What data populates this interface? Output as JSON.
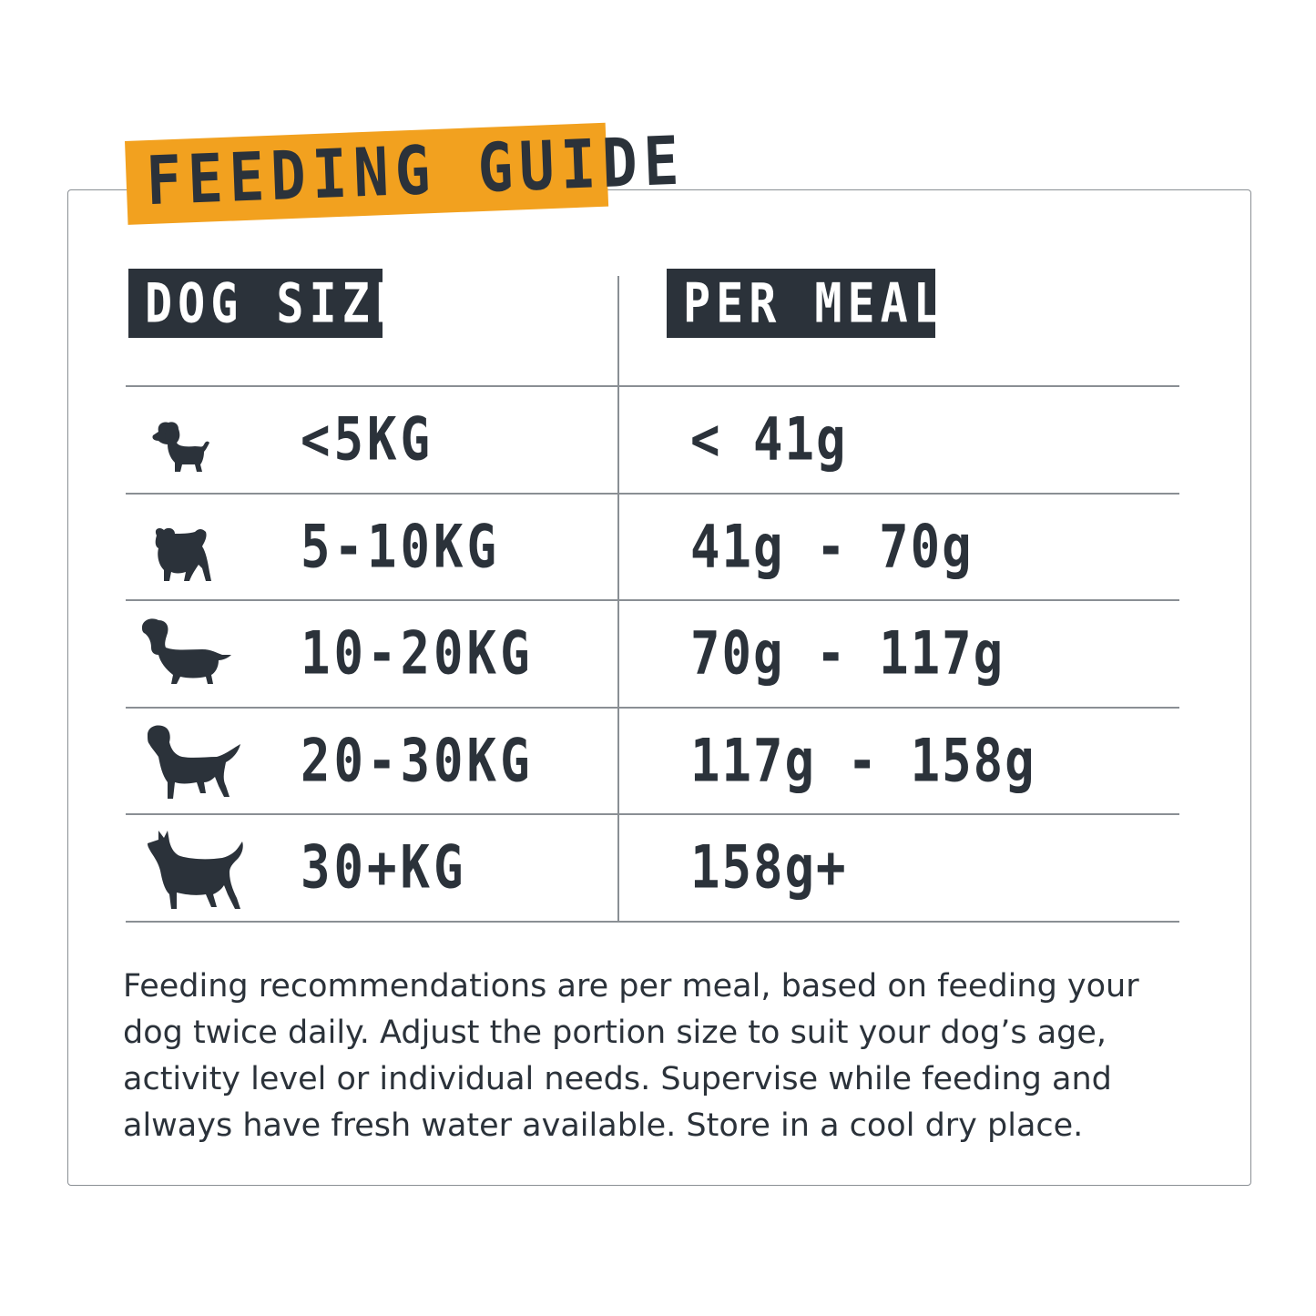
{
  "title": "FEEDING GUIDE",
  "headers": {
    "dog_size": "DOG SIZE",
    "per_meal": "PER MEAL"
  },
  "rows": [
    {
      "icon": "small-dog-icon",
      "size": "<5KG",
      "meal": "< 41g"
    },
    {
      "icon": "fluffy-dog-icon",
      "size": "5-10KG",
      "meal": "41g - 70g"
    },
    {
      "icon": "spaniel-dog-icon",
      "size": "10-20KG",
      "meal": "70g - 117g"
    },
    {
      "icon": "retriever-dog-icon",
      "size": "20-30KG",
      "meal": "117g - 158g"
    },
    {
      "icon": "shepherd-dog-icon",
      "size": "30+KG",
      "meal": "158g+"
    }
  ],
  "note": "Feeding recommendations are per meal, based on feeding your dog twice daily. Adjust the portion size to suit your dog’s age, activity level or individual needs. Supervise while feeding and always have fresh water available. Store in a cool dry place.",
  "colors": {
    "accent": "#f2a11f",
    "dark": "#2b323a",
    "border": "#8a8f94"
  }
}
